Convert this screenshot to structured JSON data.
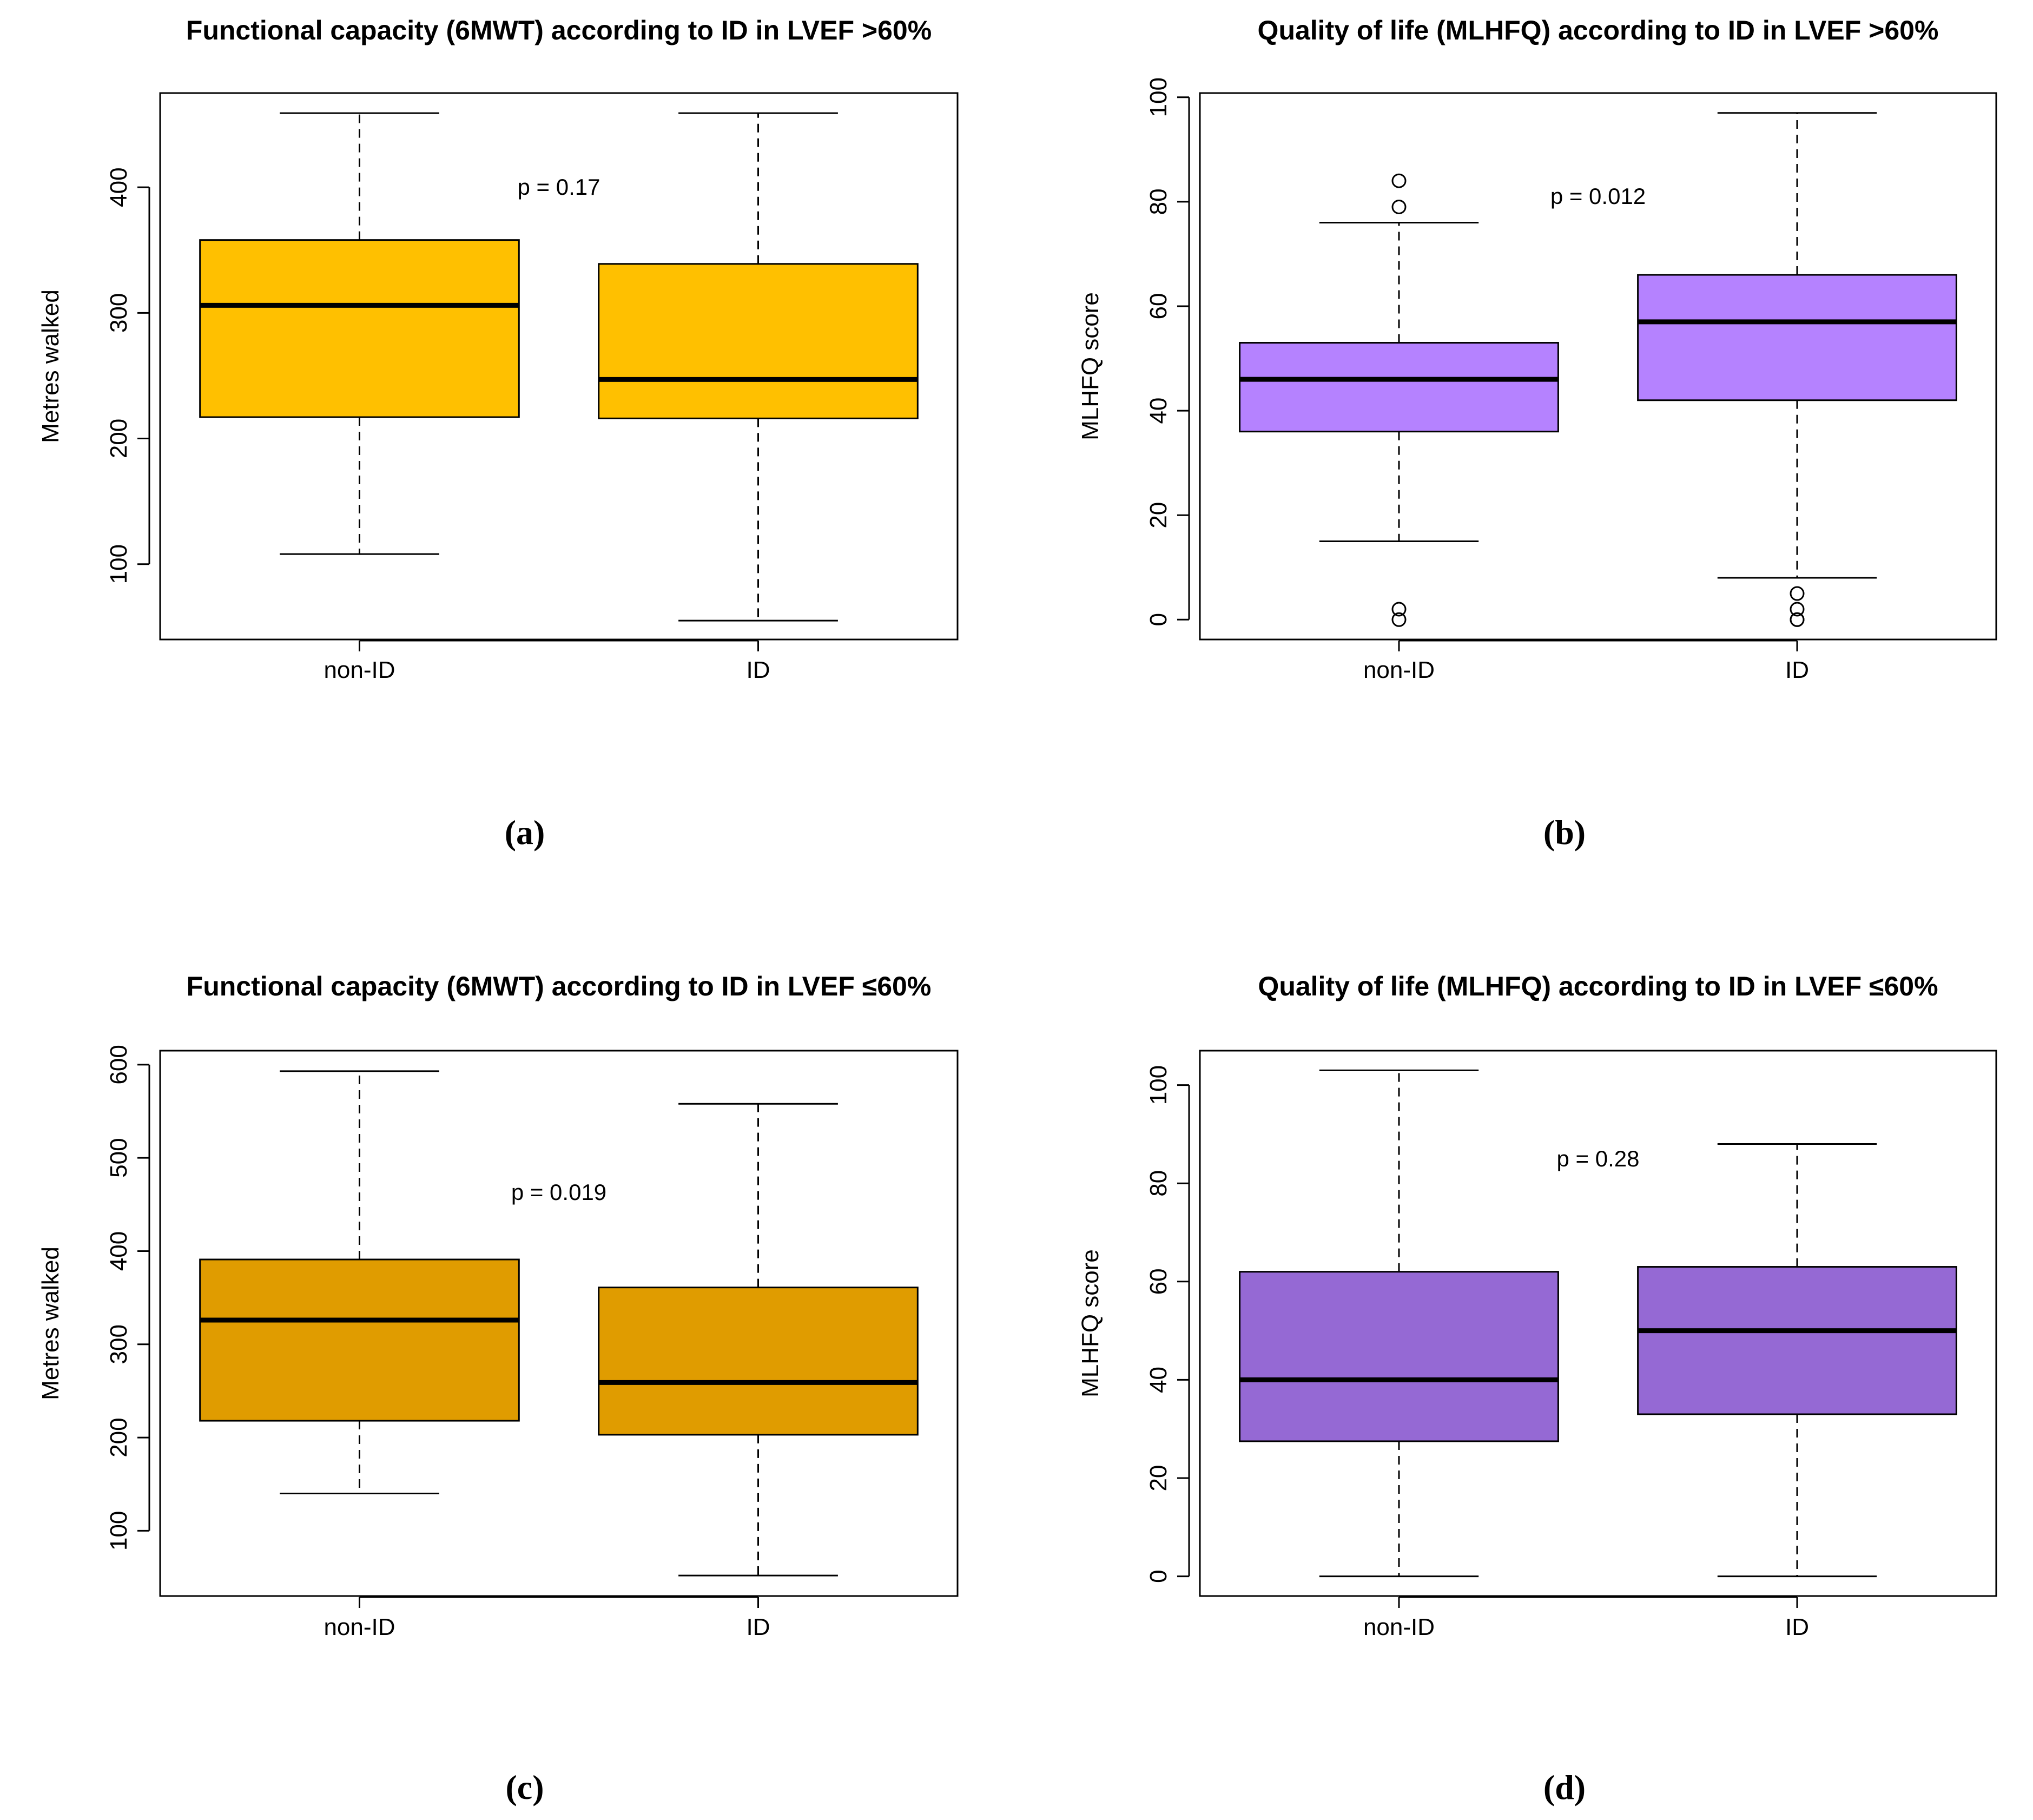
{
  "chart_data": [
    {
      "type": "boxplot",
      "panel_label": "(a)",
      "title": "Functional capacity (6MWT) according to ID in LVEF >60%",
      "ylabel": "Metres walked",
      "categories": [
        "non-ID",
        "ID"
      ],
      "yticks": [
        100,
        200,
        300,
        400
      ],
      "ylim": [
        40,
        475
      ],
      "boxes": [
        {
          "category": "non-ID",
          "whisker_low": 108,
          "q1": 217,
          "median": 306,
          "q3": 358,
          "whisker_high": 459,
          "outliers": []
        },
        {
          "category": "ID",
          "whisker_low": 55,
          "q1": 216,
          "median": 247,
          "q3": 339,
          "whisker_high": 459,
          "outliers": []
        }
      ],
      "annotation": "p = 0.17",
      "annotation_pos": {
        "x": 1.5,
        "y": 400
      },
      "fill_color": "#FFC000"
    },
    {
      "type": "boxplot",
      "panel_label": "(b)",
      "title": "Quality of life (MLHFQ) according to ID in LVEF >60%",
      "ylabel": "MLHFQ score",
      "categories": [
        "non-ID",
        "ID"
      ],
      "yticks": [
        0,
        20,
        40,
        60,
        80,
        100
      ],
      "ylim": [
        -3.8,
        100.8
      ],
      "boxes": [
        {
          "category": "non-ID",
          "whisker_low": 15,
          "q1": 36,
          "median": 46,
          "q3": 53,
          "whisker_high": 76,
          "outliers": [
            84,
            79,
            2,
            0
          ]
        },
        {
          "category": "ID",
          "whisker_low": 8,
          "q1": 42,
          "median": 57,
          "q3": 66,
          "whisker_high": 97,
          "outliers": [
            5,
            2,
            0,
            0
          ]
        }
      ],
      "annotation": "p = 0.012",
      "annotation_pos": {
        "x": 1.5,
        "y": 81
      },
      "fill_color": "#B582FF"
    },
    {
      "type": "boxplot",
      "panel_label": "(c)",
      "title": "Functional capacity (6MWT) according to ID in LVEF ≤60%",
      "ylabel": "Metres walked",
      "categories": [
        "non-ID",
        "ID"
      ],
      "yticks": [
        100,
        200,
        300,
        400,
        500,
        600
      ],
      "ylim": [
        30,
        615
      ],
      "boxes": [
        {
          "category": "non-ID",
          "whisker_low": 140,
          "q1": 218,
          "median": 326,
          "q3": 391,
          "whisker_high": 593,
          "outliers": []
        },
        {
          "category": "ID",
          "whisker_low": 52,
          "q1": 203,
          "median": 259,
          "q3": 361,
          "whisker_high": 558,
          "outliers": []
        }
      ],
      "annotation": "p = 0.019",
      "annotation_pos": {
        "x": 1.5,
        "y": 463
      },
      "fill_color": "#E09C00"
    },
    {
      "type": "boxplot",
      "panel_label": "(d)",
      "title": "Quality of life (MLHFQ) according to ID in LVEF ≤60%",
      "ylabel": "MLHFQ score",
      "categories": [
        "non-ID",
        "ID"
      ],
      "yticks": [
        0,
        20,
        40,
        60,
        80,
        100
      ],
      "ylim": [
        -4,
        107
      ],
      "boxes": [
        {
          "category": "non-ID",
          "whisker_low": 0,
          "q1": 27.5,
          "median": 40,
          "q3": 62,
          "whisker_high": 103,
          "outliers": []
        },
        {
          "category": "ID",
          "whisker_low": 0,
          "q1": 33,
          "median": 50,
          "q3": 63,
          "whisker_high": 88,
          "outliers": []
        }
      ],
      "annotation": "p = 0.28",
      "annotation_pos": {
        "x": 1.5,
        "y": 85
      },
      "fill_color": "#9569D4"
    }
  ]
}
